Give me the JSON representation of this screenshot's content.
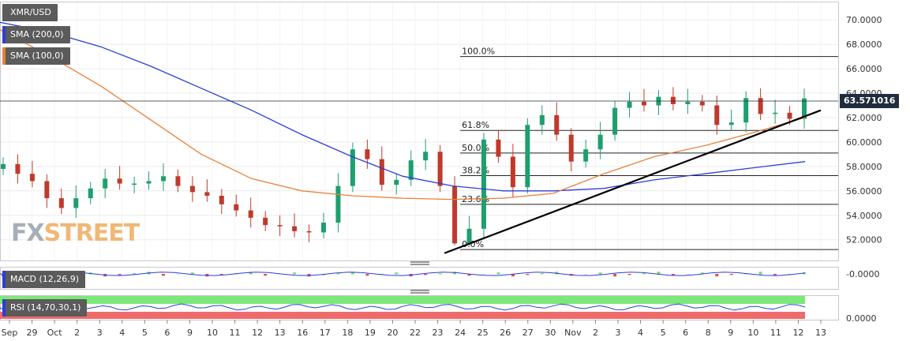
{
  "indicators": {
    "symbol": "XMR/USD",
    "sma200_label": "SMA (200,0)",
    "sma100_label": "SMA (100,0)",
    "macd_label": "MACD (12,26,9)",
    "rsi_label": "RSI (14,70,30,1)"
  },
  "watermark": {
    "fx": "FX",
    "street": "STREET"
  },
  "colors": {
    "sma200": "#2b3fd6",
    "sma100": "#e8803a",
    "candle_up": "#1f9e6e",
    "candle_down": "#c0392b",
    "rsi_overbought": "#7ce879",
    "rsi_oversold": "#ef6b6b"
  },
  "chart_data": {
    "type": "candlestick",
    "last_price_label": "63.571016",
    "y_ticks": [
      "70.0000",
      "68.0000",
      "66.0000",
      "64.0000",
      "62.0000",
      "60.0000",
      "58.0000",
      "56.0000",
      "54.0000",
      "52.0000"
    ],
    "y_tick_values": [
      70,
      68,
      66,
      64,
      62,
      60,
      58,
      56,
      54,
      52
    ],
    "ylim": [
      50.3,
      71.5
    ],
    "x_ticks": [
      "Sep",
      "29",
      "Oct",
      "2",
      "3",
      "4",
      "5",
      "6",
      "9",
      "10",
      "11",
      "12",
      "13",
      "16",
      "17",
      "18",
      "19",
      "20",
      "22",
      "23",
      "24",
      "25",
      "26",
      "27",
      "30",
      "Nov",
      "2",
      "3",
      "4",
      "5",
      "6",
      "8",
      "9",
      "10",
      "11",
      "12",
      "13"
    ],
    "fib_levels": [
      {
        "label": "100.0%",
        "value": 67.0
      },
      {
        "label": "61.8%",
        "value": 60.95
      },
      {
        "label": "50.0%",
        "value": 59.1
      },
      {
        "label": "38.2%",
        "value": 57.25
      },
      {
        "label": "23.6%",
        "value": 54.9
      },
      {
        "label": "0.0%",
        "value": 51.2
      }
    ],
    "trendline": {
      "from": [
        "24",
        50.9
      ],
      "to": [
        "13",
        62.6
      ]
    },
    "sma200": [
      69.8,
      69.0,
      67.8,
      66.2,
      64.4,
      62.6,
      60.6,
      58.8,
      57.2,
      56.4,
      56.0,
      56.0,
      56.2,
      56.9,
      57.4,
      57.9,
      58.4
    ],
    "sma100": [
      69.2,
      67.0,
      64.6,
      61.8,
      59.0,
      57.0,
      56.0,
      55.6,
      55.4,
      55.3,
      55.4,
      55.8,
      57.4,
      58.8,
      59.7,
      60.8,
      62.0
    ],
    "candles_open": [
      57.8,
      58.2,
      57.4,
      56.8,
      55.4,
      54.6,
      55.4,
      56.2,
      57.0,
      56.6,
      56.6,
      56.8,
      57.2,
      56.4,
      55.9,
      55.6,
      54.9,
      54.4,
      53.8,
      53.2,
      53.1,
      52.7,
      52.6,
      53.4,
      56.4,
      59.4,
      58.6,
      56.5,
      56.9,
      58.5,
      59.2,
      56.4,
      51.7,
      52.9,
      60.2,
      58.8,
      56.3,
      61.4,
      62.2,
      60.6,
      58.4,
      59.4,
      60.6,
      62.8,
      63.3,
      63.0,
      63.7,
      63.1,
      63.3,
      63.0,
      61.4,
      61.6,
      63.6,
      62.3,
      62.4,
      61.9
    ]
  }
}
